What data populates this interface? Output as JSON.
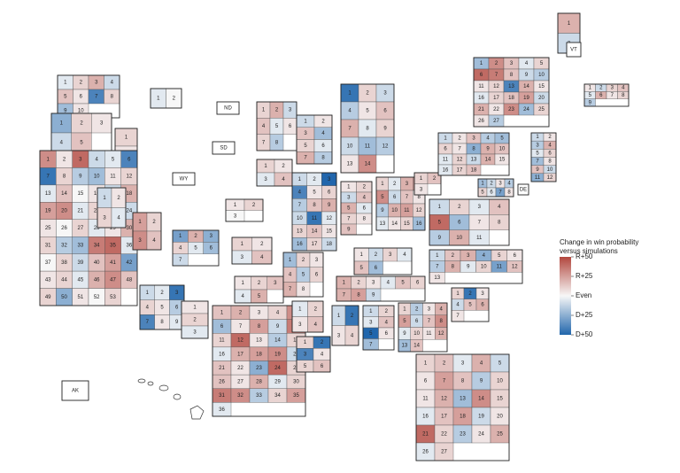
{
  "legend": {
    "title_lines": [
      "Change in win probability",
      "versus simulations"
    ],
    "ticks": [
      {
        "value": 50,
        "label": "R+50"
      },
      {
        "value": 25,
        "label": "R+25"
      },
      {
        "value": 0,
        "label": "Even"
      },
      {
        "value": -25,
        "label": "D+25"
      },
      {
        "value": -50,
        "label": "D+50"
      }
    ],
    "colors": {
      "republican": "#b2473e",
      "even": "#f7f7f7",
      "democrat": "#2166ac"
    }
  },
  "labeled_states": [
    "ND",
    "SD",
    "WY",
    "VT",
    "DE",
    "AK"
  ],
  "states": [
    {
      "districts": [
        1,
        2,
        3,
        4,
        5,
        6,
        7,
        8,
        9,
        10
      ],
      "values": [
        -5,
        10,
        20,
        -10,
        15,
        5,
        -40,
        10,
        -20,
        5
      ]
    },
    {
      "districts": [
        1,
        2,
        3,
        4,
        5
      ],
      "values": [
        -25,
        10,
        5,
        -10,
        15
      ]
    },
    {
      "districts": [
        1,
        2
      ],
      "values": [
        -5,
        0
      ]
    },
    {
      "districts": [
        1,
        2
      ],
      "values": [
        10,
        5
      ]
    },
    {
      "districts": [
        1,
        2,
        3,
        4,
        5,
        6,
        7,
        8,
        9,
        10,
        11,
        12,
        13,
        14,
        15,
        16,
        17,
        18,
        19,
        20,
        21,
        22,
        23,
        24,
        25,
        26,
        27,
        28,
        29,
        30,
        31,
        32,
        33,
        34,
        35,
        36,
        37,
        38,
        39,
        40,
        41,
        42,
        43,
        44,
        45,
        46,
        47,
        48,
        49,
        50,
        51,
        52,
        53
      ],
      "values": [
        30,
        5,
        40,
        -10,
        -5,
        -40,
        -45,
        10,
        -15,
        -20,
        5,
        10,
        -5,
        15,
        0,
        5,
        -10,
        20,
        25,
        30,
        -5,
        10,
        15,
        -10,
        5,
        0,
        10,
        -5,
        5,
        20,
        10,
        -15,
        -20,
        35,
        40,
        -5,
        0,
        10,
        -10,
        15,
        25,
        -30,
        5,
        10,
        -5,
        20,
        30,
        15,
        10,
        -25,
        5,
        0,
        10
      ]
    },
    {
      "districts": [
        1,
        2,
        3,
        4
      ],
      "values": [
        -10,
        5,
        10,
        -5
      ]
    },
    {
      "districts": [
        1,
        2,
        3,
        4
      ],
      "values": [
        25,
        10,
        30,
        15
      ]
    },
    {
      "districts": [
        1,
        2,
        3,
        4,
        5,
        6,
        7,
        8,
        9
      ],
      "values": [
        -10,
        -5,
        -45,
        10,
        5,
        -15,
        -40,
        5,
        -5
      ]
    },
    {
      "districts": [
        1,
        2,
        3,
        4,
        5,
        6,
        7
      ],
      "values": [
        -30,
        20,
        -25,
        10,
        -5,
        -20,
        -10
      ]
    },
    {
      "districts": [
        1,
        2,
        3
      ],
      "values": [
        5,
        10,
        -5
      ]
    },
    {
      "districts": [
        1,
        2,
        3,
        4,
        5,
        6,
        7,
        8,
        9,
        10,
        11,
        12,
        13,
        14,
        15,
        16,
        17,
        18,
        19,
        20,
        21,
        22,
        23,
        24,
        25,
        26,
        27,
        28,
        29,
        30,
        31,
        32,
        33,
        34,
        35,
        36
      ],
      "values": [
        15,
        20,
        5,
        10,
        30,
        -20,
        5,
        25,
        -10,
        35,
        10,
        40,
        5,
        -15,
        10,
        -5,
        20,
        25,
        30,
        -10,
        15,
        5,
        -25,
        40,
        10,
        15,
        5,
        20,
        -5,
        10,
        35,
        30,
        -15,
        10,
        25,
        -5
      ]
    },
    {
      "districts": [
        1,
        2,
        3
      ],
      "values": [
        5,
        10,
        0
      ]
    },
    {
      "districts": [
        1,
        2,
        3,
        4
      ],
      "values": [
        10,
        5,
        -5,
        15
      ]
    },
    {
      "districts": [
        1,
        2,
        3,
        4,
        5
      ],
      "values": [
        5,
        10,
        15,
        -5,
        20
      ]
    },
    {
      "districts": [
        1,
        2,
        3,
        4,
        5,
        6,
        7,
        8
      ],
      "values": [
        10,
        20,
        -10,
        15,
        -5,
        5,
        10,
        -15
      ]
    },
    {
      "districts": [
        1,
        2,
        3,
        4
      ],
      "values": [
        10,
        5,
        -5,
        15
      ]
    },
    {
      "districts": [
        1,
        2,
        3,
        4,
        5,
        6,
        7,
        8
      ],
      "values": [
        -20,
        10,
        5,
        15,
        -15,
        10,
        20,
        5
      ]
    },
    {
      "districts": [
        1,
        2,
        3,
        4
      ],
      "values": [
        -5,
        10,
        5,
        15
      ]
    },
    {
      "districts": [
        1,
        2,
        3,
        4,
        5,
        6
      ],
      "values": [
        10,
        -45,
        -40,
        5,
        10,
        15
      ]
    },
    {
      "districts": [
        1,
        2,
        3,
        4,
        5,
        6,
        7,
        8
      ],
      "values": [
        -10,
        5,
        15,
        -20,
        10,
        -5,
        20,
        -15
      ]
    },
    {
      "districts": [
        1,
        2,
        3,
        4,
        5,
        6,
        7,
        8,
        9,
        10,
        11,
        12,
        13,
        14,
        15,
        16,
        17,
        18
      ],
      "values": [
        -10,
        -5,
        -50,
        -40,
        5,
        10,
        -15,
        15,
        20,
        -10,
        -45,
        -5,
        10,
        15,
        5,
        -20,
        10,
        -10
      ]
    },
    {
      "districts": [
        1,
        2,
        3,
        4,
        5,
        6,
        7,
        8,
        9,
        10,
        11,
        12,
        13,
        14
      ],
      "values": [
        -45,
        10,
        -10,
        -15,
        5,
        15,
        20,
        -5,
        10,
        -10,
        -20,
        -15,
        5,
        30
      ]
    },
    {
      "districts": [
        1,
        2,
        3,
        4,
        5,
        6,
        7,
        8,
        9
      ],
      "values": [
        5,
        10,
        -10,
        15,
        20,
        -5,
        10,
        5,
        15
      ]
    },
    {
      "districts": [
        1,
        2,
        3,
        4,
        5,
        6,
        7,
        8,
        9,
        10,
        11,
        12,
        13,
        14,
        15,
        16
      ],
      "values": [
        10,
        -5,
        20,
        25,
        30,
        -10,
        15,
        5,
        -15,
        20,
        25,
        10,
        -5,
        5,
        10,
        -20
      ]
    },
    {
      "districts": [
        1,
        2,
        3,
        4,
        5,
        6
      ],
      "values": [
        5,
        -10,
        10,
        -5,
        15,
        -20
      ]
    },
    {
      "districts": [
        1,
        2,
        3,
        4,
        5,
        6,
        7,
        8,
        9
      ],
      "values": [
        20,
        10,
        5,
        -5,
        15,
        10,
        20,
        25,
        -10
      ]
    },
    {
      "districts": [
        1,
        2,
        3,
        4
      ],
      "values": [
        -10,
        -45,
        5,
        10
      ]
    },
    {
      "districts": [
        1,
        2,
        3,
        4,
        5,
        6,
        7
      ],
      "values": [
        -10,
        10,
        -5,
        15,
        -50,
        5,
        -20
      ]
    },
    {
      "districts": [
        1,
        2,
        3,
        4,
        5,
        6,
        7,
        8,
        9,
        10,
        11,
        12,
        13,
        14
      ],
      "values": [
        10,
        -15,
        5,
        20,
        25,
        -10,
        15,
        30,
        -5,
        10,
        5,
        20,
        -20,
        15
      ]
    },
    {
      "districts": [
        1,
        2,
        3,
        4,
        5,
        6,
        7
      ],
      "values": [
        10,
        -45,
        5,
        -10,
        15,
        20,
        5
      ]
    },
    {
      "districts": [
        1,
        2,
        3,
        4,
        5,
        6,
        7,
        8,
        9,
        10,
        11,
        12,
        13
      ],
      "values": [
        -10,
        15,
        20,
        -25,
        10,
        5,
        -15,
        20,
        -5,
        10,
        -30,
        15,
        5
      ]
    },
    {
      "districts": [
        1,
        2,
        3,
        4,
        5,
        6,
        7,
        8,
        9,
        10,
        11
      ],
      "values": [
        -10,
        10,
        -5,
        15,
        40,
        -20,
        5,
        10,
        -15,
        20,
        -5
      ]
    },
    {
      "districts": [
        1,
        2,
        3
      ],
      "values": [
        10,
        15,
        5
      ]
    },
    {
      "districts": [
        1,
        2,
        3,
        4,
        5,
        6,
        7,
        8,
        9,
        10,
        11,
        12,
        13,
        14,
        15,
        16,
        17,
        18
      ],
      "values": [
        -10,
        5,
        15,
        -15,
        -20,
        10,
        5,
        -25,
        20,
        15,
        -5,
        10,
        -10,
        20,
        5,
        -5,
        10,
        15
      ]
    },
    {
      "districts": [
        1,
        2,
        3,
        4,
        5,
        6,
        7,
        8,
        9,
        10,
        11,
        12,
        13,
        14,
        15,
        16,
        17,
        18,
        19,
        20,
        21,
        22,
        23,
        24,
        25,
        26,
        27
      ],
      "values": [
        -20,
        30,
        15,
        -5,
        10,
        40,
        35,
        15,
        -10,
        -15,
        5,
        10,
        -40,
        20,
        5,
        -5,
        10,
        15,
        25,
        -10,
        20,
        5,
        30,
        -20,
        10,
        5,
        -15
      ]
    },
    {
      "districts": [
        1,
        2,
        3,
        4,
        5,
        6,
        7,
        8,
        9,
        10,
        11,
        12
      ],
      "values": [
        -10,
        5,
        -15,
        20,
        -5,
        10,
        -20,
        5,
        15,
        -10,
        -25,
        10
      ]
    },
    {
      "districts": [
        1,
        2,
        3,
        4,
        5,
        6,
        7,
        8
      ],
      "values": [
        -20,
        -10,
        5,
        -15,
        10,
        -5,
        -30,
        5
      ]
    },
    {
      "districts": [
        1,
        2,
        3,
        4,
        5,
        6,
        7,
        8,
        9
      ],
      "values": [
        5,
        -10,
        10,
        15,
        -5,
        20,
        5,
        10,
        -15
      ]
    },
    {
      "districts": [
        1,
        2
      ],
      "values": [
        20,
        -10
      ]
    },
    {
      "districts": [
        1,
        2,
        3,
        4,
        5,
        6,
        7,
        8,
        9,
        10,
        11,
        12,
        13,
        14,
        15,
        16,
        17,
        18,
        19,
        20,
        21,
        22,
        23,
        24,
        25,
        26,
        27
      ],
      "values": [
        10,
        15,
        -5,
        20,
        -10,
        5,
        25,
        15,
        -15,
        10,
        5,
        20,
        -20,
        30,
        10,
        -5,
        15,
        25,
        -10,
        5,
        40,
        10,
        -15,
        5,
        20,
        -5,
        10
      ]
    }
  ]
}
